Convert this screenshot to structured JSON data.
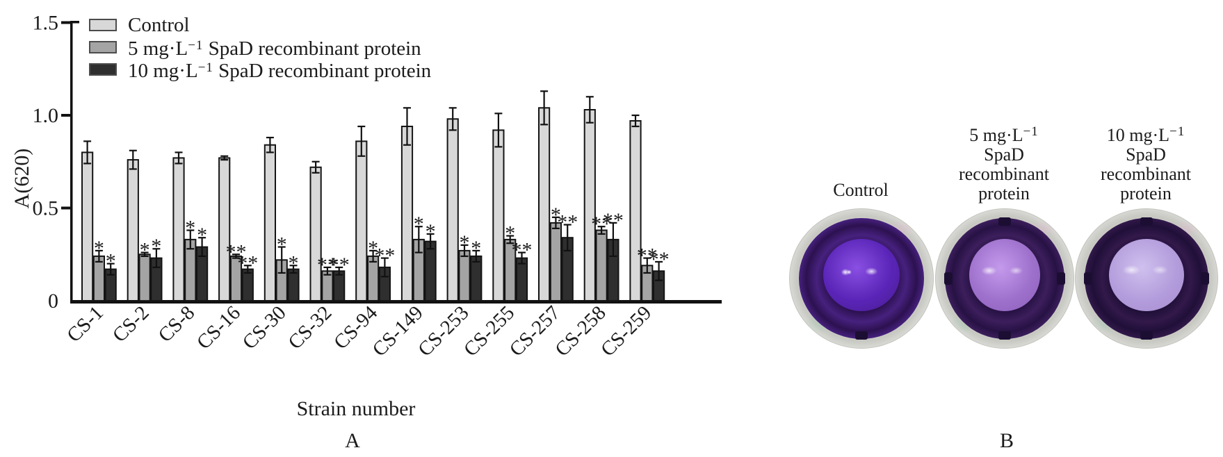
{
  "figure": {
    "background": "#ffffff"
  },
  "panel_a": {
    "panel_label": "A",
    "y_axis_label": "A(620)",
    "x_axis_label": "Strain number",
    "legend": [
      {
        "pre": "Control",
        "sup": "",
        "post": "",
        "color": "#d8d8d8"
      },
      {
        "pre": "5 mg·L",
        "sup": "−1",
        "post": " SpaD recombinant protein",
        "color": "#a4a4a4"
      },
      {
        "pre": "10 mg·L",
        "sup": "−1",
        "post": " SpaD recombinant protein",
        "color": "#2f2f2f"
      }
    ],
    "chart_data": {
      "type": "bar",
      "title": "",
      "xlabel": "Strain number",
      "ylabel": "A(620)",
      "ylim": [
        0,
        1.5
      ],
      "grid": false,
      "legend_position": "upper left",
      "yticks": [
        {
          "value": 0,
          "label": "0"
        },
        {
          "value": 0.5,
          "label": "0.5"
        },
        {
          "value": 1.0,
          "label": "1.0"
        },
        {
          "value": 1.5,
          "label": "1.5"
        }
      ],
      "categories": [
        "CS-1",
        "CS-2",
        "CS-8",
        "CS-16",
        "CS-30",
        "CS-32",
        "CS-94",
        "CS-149",
        "CS-253",
        "CS-255",
        "CS-257",
        "CS-258",
        "CS-259"
      ],
      "series": [
        {
          "name": "Control",
          "color": "#d8d8d8",
          "values": [
            0.8,
            0.76,
            0.77,
            0.77,
            0.84,
            0.72,
            0.86,
            0.94,
            0.98,
            0.92,
            1.04,
            1.03,
            0.97
          ],
          "errors": [
            0.06,
            0.05,
            0.03,
            0.01,
            0.04,
            0.03,
            0.08,
            0.1,
            0.06,
            0.09,
            0.09,
            0.07,
            0.03
          ],
          "sig": [
            "",
            "",
            "",
            "",
            "",
            "",
            "",
            "",
            "",
            "",
            "",
            "",
            ""
          ]
        },
        {
          "name": "5 mg·L−1 SpaD recombinant protein",
          "color": "#a4a4a4",
          "values": [
            0.24,
            0.25,
            0.33,
            0.24,
            0.22,
            0.16,
            0.24,
            0.33,
            0.27,
            0.33,
            0.42,
            0.38,
            0.19
          ],
          "errors": [
            0.03,
            0.01,
            0.05,
            0.01,
            0.07,
            0.02,
            0.03,
            0.07,
            0.03,
            0.02,
            0.03,
            0.02,
            0.04
          ],
          "sig": [
            "*",
            "*",
            "*",
            "**",
            "*",
            "**",
            "*",
            "*",
            "*",
            "*",
            "*",
            "**",
            "**"
          ]
        },
        {
          "name": "10 mg·L−1 SpaD recombinant protein",
          "color": "#2f2f2f",
          "values": [
            0.17,
            0.23,
            0.29,
            0.17,
            0.17,
            0.16,
            0.18,
            0.32,
            0.24,
            0.23,
            0.34,
            0.33,
            0.16
          ],
          "errors": [
            0.03,
            0.05,
            0.05,
            0.02,
            0.02,
            0.02,
            0.05,
            0.04,
            0.03,
            0.03,
            0.07,
            0.09,
            0.05
          ],
          "sig": [
            "*",
            "*",
            "*",
            "**",
            "*",
            "**",
            "**",
            "*",
            "*",
            "**",
            "**",
            "**",
            "**"
          ]
        }
      ]
    }
  },
  "panel_b": {
    "panel_label": "B",
    "wells": [
      {
        "name": "Control",
        "label_lines": [
          {
            "pre": "Control",
            "sup": ""
          }
        ],
        "colors": {
          "rim": "#d8d9d4",
          "ring": "#47217e",
          "ring_deep": "#2c1150",
          "center": "#5a25b8",
          "center_hi": "#8a4fe3",
          "center_deep": "#4a1c92"
        }
      },
      {
        "name": "5 mg·L−1 SpaD recombinant protein",
        "label_lines": [
          {
            "pre": "5 mg·L",
            "sup": "−1"
          },
          {
            "pre": "SpaD",
            "sup": ""
          },
          {
            "pre": "recombinant",
            "sup": ""
          },
          {
            "pre": "protein",
            "sup": ""
          }
        ],
        "colors": {
          "rim": "#d8d9d4",
          "ring": "#3c1e5c",
          "ring_deep": "#271244",
          "center": "#9e71cc",
          "center_hi": "#c49aec",
          "center_deep": "#8e60bd"
        }
      },
      {
        "name": "10 mg·L−1 SpaD recombinant protein",
        "label_lines": [
          {
            "pre": "10 mg·L",
            "sup": "−1"
          },
          {
            "pre": "SpaD",
            "sup": ""
          },
          {
            "pre": "recombinant",
            "sup": ""
          },
          {
            "pre": "protein",
            "sup": ""
          }
        ],
        "colors": {
          "rim": "#d6d7d2",
          "ring": "#32194a",
          "ring_deep": "#200f38",
          "center": "#b49ddc",
          "center_hi": "#cfc0ee",
          "center_deep": "#a78ed0"
        }
      }
    ]
  }
}
